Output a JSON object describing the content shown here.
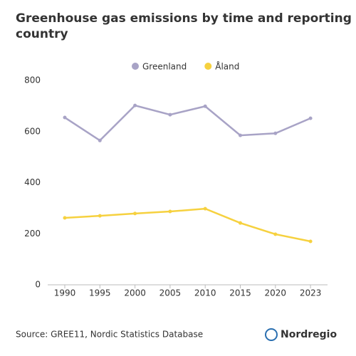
{
  "chart_data": {
    "type": "line",
    "title": "Greenhouse gas emissions by time and reporting country",
    "categories": [
      "1990",
      "1995",
      "2000",
      "2005",
      "2010",
      "2015",
      "2020",
      "2023"
    ],
    "series": [
      {
        "name": "Greenland",
        "color": "#a8a3c6",
        "values": [
          655,
          565,
          702,
          666,
          699,
          585,
          593,
          652
        ]
      },
      {
        "name": "Åland",
        "color": "#f6d13f",
        "values": [
          262,
          270,
          279,
          287,
          298,
          242,
          198,
          170
        ]
      }
    ],
    "ylim": [
      0,
      800
    ],
    "yticks": [
      0,
      200,
      400,
      600,
      800
    ],
    "grid": false,
    "legend": "top"
  },
  "footer": {
    "source": "Source: GREE11, Nordic Statistics Database",
    "brand": "Nordregio"
  }
}
